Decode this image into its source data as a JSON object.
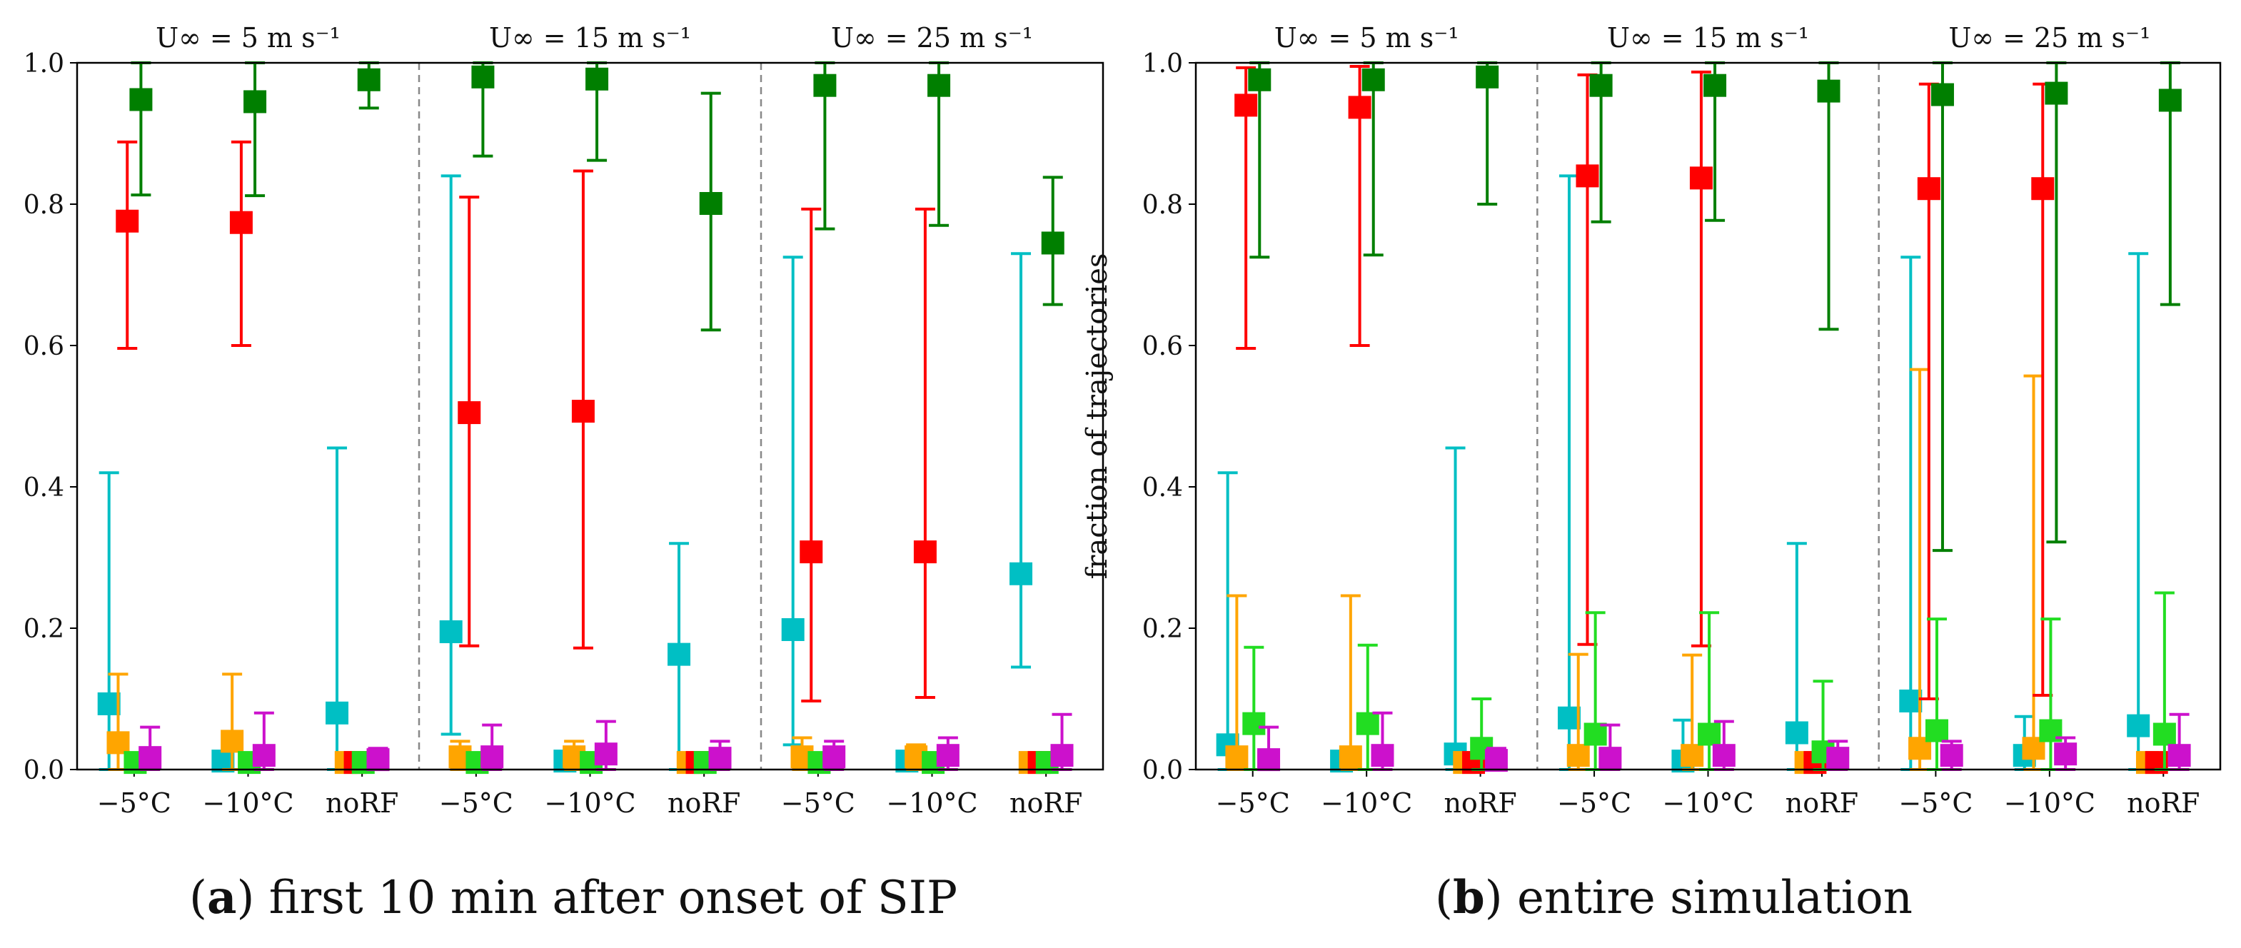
{
  "colors": {
    "cyan": "#00bfc4",
    "orange": "#ffa500",
    "red": "#ff0000",
    "lime": "#22dd22",
    "green": "#007f00",
    "magenta": "#cc11cc"
  },
  "captions": {
    "a": {
      "letter": "a",
      "text": "first 10 min after onset of SIP"
    },
    "b": {
      "letter": "b",
      "text": "entire simulation"
    }
  },
  "chart_data": [
    {
      "type": "scatter",
      "panel": "a",
      "ylabel": "fraction of trajectories",
      "ylim": [
        0,
        1.0
      ],
      "yticks": [
        "0.0",
        "0.2",
        "0.4",
        "0.6",
        "0.8",
        "1.0"
      ],
      "groups": [
        {
          "title": "U∞ = 5 m s⁻¹",
          "categories": [
            "−5°C",
            "−10°C",
            "noRF"
          ]
        },
        {
          "title": "U∞ = 15 m s⁻¹",
          "categories": [
            "−5°C",
            "−10°C",
            "noRF"
          ]
        },
        {
          "title": "U∞ = 25 m s⁻¹",
          "categories": [
            "−5°C",
            "−10°C",
            "noRF"
          ]
        }
      ],
      "series": [
        {
          "color": "cyan",
          "values": [
            [
              0.093,
              0.0,
              0.42
            ],
            [
              0.012,
              0.0,
              0.02
            ],
            [
              0.08,
              0.0,
              0.455
            ],
            [
              0.195,
              0.05,
              0.84
            ],
            [
              0.012,
              0.0,
              0.02
            ],
            [
              0.163,
              0.0,
              0.32
            ],
            [
              0.198,
              0.035,
              0.725
            ],
            [
              0.012,
              0.0,
              0.02
            ],
            [
              0.277,
              0.145,
              0.73
            ]
          ]
        },
        {
          "color": "orange",
          "values": [
            [
              0.038,
              0.0,
              0.135
            ],
            [
              0.04,
              0.0,
              0.135
            ],
            [
              0.01,
              0.0,
              0.02
            ],
            [
              0.018,
              0.0,
              0.04
            ],
            [
              0.018,
              0.0,
              0.04
            ],
            [
              0.01,
              0.0,
              0.02
            ],
            [
              0.018,
              0.0,
              0.045
            ],
            [
              0.018,
              0.0,
              0.035
            ],
            [
              0.01,
              0.0,
              0.02
            ]
          ]
        },
        {
          "color": "red",
          "values": [
            [
              0.776,
              0.596,
              0.888
            ],
            [
              0.774,
              0.6,
              0.888
            ],
            [
              0.01,
              0.0,
              0.02
            ],
            [
              0.505,
              0.175,
              0.81
            ],
            [
              0.507,
              0.172,
              0.847
            ],
            [
              0.01,
              0.0,
              0.02
            ],
            [
              0.308,
              0.097,
              0.793
            ],
            [
              0.308,
              0.102,
              0.793
            ],
            [
              0.01,
              0.0,
              0.02
            ]
          ]
        },
        {
          "color": "lime",
          "values": [
            [
              0.01,
              0.0,
              0.02
            ],
            [
              0.01,
              0.0,
              0.02
            ],
            [
              0.01,
              0.0,
              0.02
            ],
            [
              0.01,
              0.0,
              0.02
            ],
            [
              0.01,
              0.0,
              0.02
            ],
            [
              0.01,
              0.0,
              0.02
            ],
            [
              0.01,
              0.0,
              0.02
            ],
            [
              0.01,
              0.0,
              0.02
            ],
            [
              0.01,
              0.0,
              0.02
            ]
          ]
        },
        {
          "color": "green",
          "values": [
            [
              0.948,
              0.813,
              1.0
            ],
            [
              0.945,
              0.812,
              1.0
            ],
            [
              0.976,
              0.936,
              1.0
            ],
            [
              0.98,
              0.868,
              1.0
            ],
            [
              0.977,
              0.862,
              1.0
            ],
            [
              0.801,
              0.622,
              0.957
            ],
            [
              0.968,
              0.765,
              1.0
            ],
            [
              0.968,
              0.77,
              1.0
            ],
            [
              0.745,
              0.658,
              0.838
            ]
          ]
        },
        {
          "color": "magenta",
          "values": [
            [
              0.017,
              0.0,
              0.06
            ],
            [
              0.02,
              0.0,
              0.08
            ],
            [
              0.014,
              0.0,
              0.03
            ],
            [
              0.018,
              0.0,
              0.063
            ],
            [
              0.022,
              0.0,
              0.068
            ],
            [
              0.016,
              0.0,
              0.04
            ],
            [
              0.018,
              0.0,
              0.04
            ],
            [
              0.02,
              0.0,
              0.045
            ],
            [
              0.02,
              0.0,
              0.078
            ]
          ]
        }
      ]
    },
    {
      "type": "scatter",
      "panel": "b",
      "ylabel": "fraction of trajectories",
      "ylim": [
        0,
        1.0
      ],
      "yticks": [
        "0.0",
        "0.2",
        "0.4",
        "0.6",
        "0.8",
        "1.0"
      ],
      "groups": [
        {
          "title": "U∞ = 5 m s⁻¹",
          "categories": [
            "−5°C",
            "−10°C",
            "noRF"
          ]
        },
        {
          "title": "U∞ = 15 m s⁻¹",
          "categories": [
            "−5°C",
            "−10°C",
            "noRF"
          ]
        },
        {
          "title": "U∞ = 25 m s⁻¹",
          "categories": [
            "−5°C",
            "−10°C",
            "noRF"
          ]
        }
      ],
      "series": [
        {
          "color": "cyan",
          "values": [
            [
              0.035,
              0.0,
              0.42
            ],
            [
              0.012,
              0.0,
              0.02
            ],
            [
              0.022,
              0.0,
              0.455
            ],
            [
              0.073,
              0.0,
              0.84
            ],
            [
              0.012,
              0.0,
              0.07
            ],
            [
              0.052,
              0.0,
              0.32
            ],
            [
              0.097,
              0.0,
              0.725
            ],
            [
              0.02,
              0.0,
              0.075
            ],
            [
              0.062,
              0.0,
              0.73
            ]
          ]
        },
        {
          "color": "orange",
          "values": [
            [
              0.018,
              0.0,
              0.246
            ],
            [
              0.018,
              0.0,
              0.246
            ],
            [
              0.01,
              0.0,
              0.02
            ],
            [
              0.02,
              0.0,
              0.163
            ],
            [
              0.02,
              0.0,
              0.162
            ],
            [
              0.01,
              0.0,
              0.02
            ],
            [
              0.03,
              0.0,
              0.566
            ],
            [
              0.03,
              0.0,
              0.557
            ],
            [
              0.01,
              0.0,
              0.02
            ]
          ]
        },
        {
          "color": "red",
          "values": [
            [
              0.94,
              0.596,
              0.993
            ],
            [
              0.937,
              0.6,
              0.995
            ],
            [
              0.01,
              0.0,
              0.02
            ],
            [
              0.84,
              0.177,
              0.983
            ],
            [
              0.837,
              0.175,
              0.987
            ],
            [
              0.01,
              0.0,
              0.02
            ],
            [
              0.822,
              0.1,
              0.97
            ],
            [
              0.822,
              0.105,
              0.97
            ],
            [
              0.01,
              0.0,
              0.02
            ]
          ]
        },
        {
          "color": "lime",
          "values": [
            [
              0.065,
              0.0,
              0.173
            ],
            [
              0.065,
              0.0,
              0.176
            ],
            [
              0.03,
              0.0,
              0.1
            ],
            [
              0.05,
              0.0,
              0.222
            ],
            [
              0.05,
              0.0,
              0.222
            ],
            [
              0.025,
              0.0,
              0.125
            ],
            [
              0.055,
              0.0,
              0.213
            ],
            [
              0.055,
              0.0,
              0.213
            ],
            [
              0.05,
              0.0,
              0.25
            ]
          ]
        },
        {
          "color": "green",
          "values": [
            [
              0.976,
              0.725,
              1.0
            ],
            [
              0.976,
              0.728,
              1.0
            ],
            [
              0.98,
              0.8,
              1.0
            ],
            [
              0.968,
              0.775,
              1.0
            ],
            [
              0.968,
              0.777,
              1.0
            ],
            [
              0.96,
              0.623,
              1.0
            ],
            [
              0.955,
              0.31,
              1.0
            ],
            [
              0.957,
              0.322,
              1.0
            ],
            [
              0.947,
              0.658,
              1.0
            ]
          ]
        },
        {
          "color": "magenta",
          "values": [
            [
              0.014,
              0.0,
              0.06
            ],
            [
              0.02,
              0.0,
              0.08
            ],
            [
              0.013,
              0.0,
              0.03
            ],
            [
              0.016,
              0.0,
              0.063
            ],
            [
              0.02,
              0.0,
              0.068
            ],
            [
              0.016,
              0.0,
              0.04
            ],
            [
              0.02,
              0.0,
              0.04
            ],
            [
              0.022,
              0.0,
              0.045
            ],
            [
              0.02,
              0.0,
              0.078
            ]
          ]
        }
      ]
    }
  ]
}
